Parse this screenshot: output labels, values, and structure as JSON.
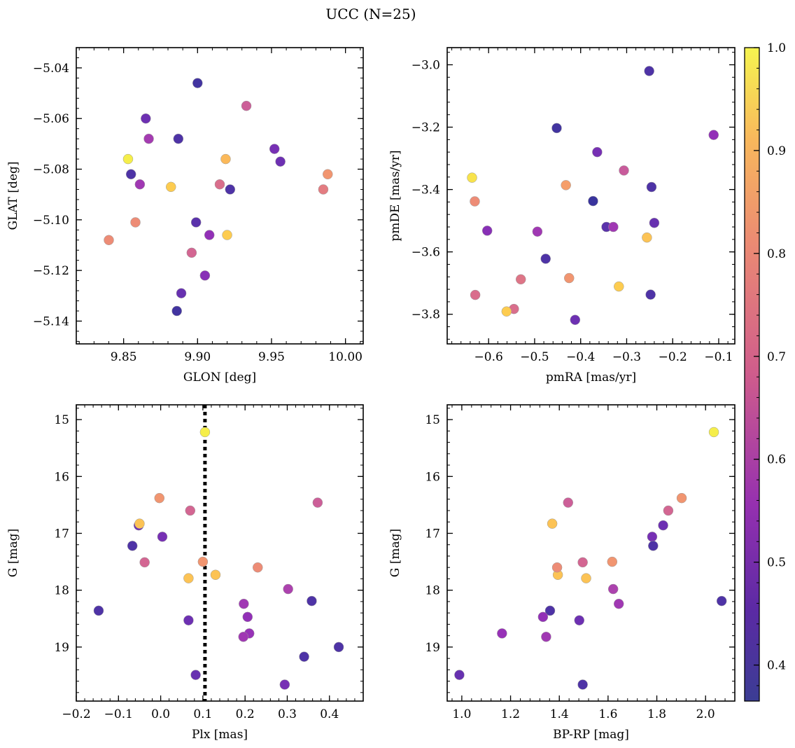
{
  "figure_title": "UCC (N=25)",
  "chart_data": [
    {
      "type": "scatter",
      "xlabel": "GLON [deg]",
      "ylabel": "GLAT [deg]",
      "xlim": [
        9.818,
        10.012
      ],
      "ylim": [
        -5.149,
        -5.032
      ],
      "y_inverted": false,
      "xticks": [
        9.85,
        9.9,
        9.95,
        10.0
      ],
      "xtick_labels": [
        "9.85",
        "9.90",
        "9.95",
        "10.00"
      ],
      "yticks": [
        -5.04,
        -5.06,
        -5.08,
        -5.1,
        -5.12,
        -5.14
      ],
      "ytick_labels": [
        "−5.04",
        "−5.06",
        "−5.08",
        "−5.10",
        "−5.12",
        "−5.14"
      ],
      "points": [
        {
          "x": 9.853,
          "y": -5.076,
          "c": 0.98
        },
        {
          "x": 9.855,
          "y": -5.082,
          "c": 0.4
        },
        {
          "x": 9.861,
          "y": -5.086,
          "c": 0.55
        },
        {
          "x": 9.865,
          "y": -5.06,
          "c": 0.45
        },
        {
          "x": 9.867,
          "y": -5.068,
          "c": 0.56
        },
        {
          "x": 9.887,
          "y": -5.068,
          "c": 0.4
        },
        {
          "x": 9.9,
          "y": -5.046,
          "c": 0.38
        },
        {
          "x": 9.882,
          "y": -5.087,
          "c": 0.92
        },
        {
          "x": 9.858,
          "y": -5.101,
          "c": 0.78
        },
        {
          "x": 9.84,
          "y": -5.108,
          "c": 0.78
        },
        {
          "x": 9.899,
          "y": -5.101,
          "c": 0.42
        },
        {
          "x": 9.908,
          "y": -5.106,
          "c": 0.52
        },
        {
          "x": 9.896,
          "y": -5.113,
          "c": 0.68
        },
        {
          "x": 9.905,
          "y": -5.122,
          "c": 0.5
        },
        {
          "x": 9.889,
          "y": -5.129,
          "c": 0.44
        },
        {
          "x": 9.886,
          "y": -5.136,
          "c": 0.38
        },
        {
          "x": 9.915,
          "y": -5.086,
          "c": 0.7
        },
        {
          "x": 9.922,
          "y": -5.088,
          "c": 0.4
        },
        {
          "x": 9.919,
          "y": -5.076,
          "c": 0.88
        },
        {
          "x": 9.92,
          "y": -5.106,
          "c": 0.92
        },
        {
          "x": 9.933,
          "y": -5.055,
          "c": 0.66
        },
        {
          "x": 9.952,
          "y": -5.072,
          "c": 0.47
        },
        {
          "x": 9.956,
          "y": -5.077,
          "c": 0.45
        },
        {
          "x": 9.985,
          "y": -5.088,
          "c": 0.74
        },
        {
          "x": 9.988,
          "y": -5.082,
          "c": 0.8
        }
      ]
    },
    {
      "type": "scatter",
      "xlabel": "pmRA [mas/yr]",
      "ylabel": "pmDE [mas/yr]",
      "xlim": [
        -0.69,
        -0.065
      ],
      "ylim": [
        -3.895,
        -2.945
      ],
      "y_inverted": false,
      "xticks": [
        -0.6,
        -0.5,
        -0.4,
        -0.3,
        -0.2,
        -0.1
      ],
      "xtick_labels": [
        "−0.6",
        "−0.5",
        "−0.4",
        "−0.3",
        "−0.2",
        "−0.1"
      ],
      "yticks": [
        -3.0,
        -3.2,
        -3.4,
        -3.6,
        -3.8
      ],
      "ytick_labels": [
        "−3.0",
        "−3.2",
        "−3.4",
        "−3.6",
        "−3.8"
      ],
      "points": [
        {
          "x": -0.251,
          "y": -3.02,
          "c": 0.4
        },
        {
          "x": -0.452,
          "y": -3.203,
          "c": 0.38
        },
        {
          "x": -0.111,
          "y": -3.225,
          "c": 0.52
        },
        {
          "x": -0.364,
          "y": -3.28,
          "c": 0.47
        },
        {
          "x": -0.306,
          "y": -3.339,
          "c": 0.65
        },
        {
          "x": -0.636,
          "y": -3.362,
          "c": 0.96
        },
        {
          "x": -0.432,
          "y": -3.386,
          "c": 0.82
        },
        {
          "x": -0.246,
          "y": -3.392,
          "c": 0.4
        },
        {
          "x": -0.63,
          "y": -3.438,
          "c": 0.78
        },
        {
          "x": -0.373,
          "y": -3.437,
          "c": 0.36
        },
        {
          "x": -0.24,
          "y": -3.507,
          "c": 0.44
        },
        {
          "x": -0.603,
          "y": -3.532,
          "c": 0.5
        },
        {
          "x": -0.494,
          "y": -3.535,
          "c": 0.55
        },
        {
          "x": -0.344,
          "y": -3.52,
          "c": 0.42
        },
        {
          "x": -0.329,
          "y": -3.52,
          "c": 0.55
        },
        {
          "x": -0.256,
          "y": -3.554,
          "c": 0.9
        },
        {
          "x": -0.476,
          "y": -3.622,
          "c": 0.4
        },
        {
          "x": -0.53,
          "y": -3.688,
          "c": 0.72
        },
        {
          "x": -0.425,
          "y": -3.684,
          "c": 0.8
        },
        {
          "x": -0.317,
          "y": -3.711,
          "c": 0.92
        },
        {
          "x": -0.629,
          "y": -3.738,
          "c": 0.7
        },
        {
          "x": -0.248,
          "y": -3.737,
          "c": 0.4
        },
        {
          "x": -0.545,
          "y": -3.783,
          "c": 0.7
        },
        {
          "x": -0.561,
          "y": -3.791,
          "c": 0.92
        },
        {
          "x": -0.412,
          "y": -3.818,
          "c": 0.45
        }
      ]
    },
    {
      "type": "scatter",
      "xlabel": "Plx [mas]",
      "ylabel": "G [mag]",
      "xlim": [
        -0.2,
        0.48
      ],
      "ylim": [
        14.74,
        19.95
      ],
      "y_inverted": true,
      "vline": {
        "x": 0.105,
        "style": "dotted",
        "color": "#000000"
      },
      "xticks": [
        -0.2,
        -0.1,
        0.0,
        0.1,
        0.2,
        0.3,
        0.4
      ],
      "xtick_labels": [
        "−0.2",
        "−0.1",
        "0.0",
        "0.1",
        "0.2",
        "0.3",
        "0.4"
      ],
      "yticks": [
        15,
        16,
        17,
        18,
        19
      ],
      "ytick_labels": [
        "15",
        "16",
        "17",
        "18",
        "19"
      ],
      "points": [
        {
          "x": 0.105,
          "y": 15.22,
          "c": 0.98
        },
        {
          "x": -0.003,
          "y": 16.38,
          "c": 0.8
        },
        {
          "x": 0.07,
          "y": 16.6,
          "c": 0.68
        },
        {
          "x": 0.372,
          "y": 16.46,
          "c": 0.66
        },
        {
          "x": -0.052,
          "y": 16.86,
          "c": 0.45
        },
        {
          "x": -0.05,
          "y": 16.83,
          "c": 0.9
        },
        {
          "x": 0.004,
          "y": 17.06,
          "c": 0.47
        },
        {
          "x": -0.067,
          "y": 17.22,
          "c": 0.4
        },
        {
          "x": -0.038,
          "y": 17.51,
          "c": 0.68
        },
        {
          "x": 0.1,
          "y": 17.5,
          "c": 0.8
        },
        {
          "x": 0.066,
          "y": 17.79,
          "c": 0.9
        },
        {
          "x": 0.13,
          "y": 17.73,
          "c": 0.9
        },
        {
          "x": 0.23,
          "y": 17.6,
          "c": 0.78
        },
        {
          "x": 0.302,
          "y": 17.98,
          "c": 0.58
        },
        {
          "x": 0.197,
          "y": 18.24,
          "c": 0.55
        },
        {
          "x": 0.358,
          "y": 18.19,
          "c": 0.4
        },
        {
          "x": -0.147,
          "y": 18.36,
          "c": 0.4
        },
        {
          "x": 0.066,
          "y": 18.53,
          "c": 0.45
        },
        {
          "x": 0.206,
          "y": 18.47,
          "c": 0.52
        },
        {
          "x": 0.21,
          "y": 18.76,
          "c": 0.53
        },
        {
          "x": 0.196,
          "y": 18.82,
          "c": 0.55
        },
        {
          "x": 0.422,
          "y": 19.0,
          "c": 0.4
        },
        {
          "x": 0.34,
          "y": 19.17,
          "c": 0.4
        },
        {
          "x": 0.083,
          "y": 19.49,
          "c": 0.44
        },
        {
          "x": 0.294,
          "y": 19.66,
          "c": 0.47
        }
      ]
    },
    {
      "type": "scatter",
      "xlabel": "BP-RP [mag]",
      "ylabel": "G [mag]",
      "xlim": [
        0.94,
        2.12
      ],
      "ylim": [
        14.74,
        19.95
      ],
      "y_inverted": true,
      "xticks": [
        1.0,
        1.2,
        1.4,
        1.6,
        1.8,
        2.0
      ],
      "xtick_labels": [
        "1.0",
        "1.2",
        "1.4",
        "1.6",
        "1.8",
        "2.0"
      ],
      "yticks": [
        15,
        16,
        17,
        18,
        19
      ],
      "ytick_labels": [
        "15",
        "16",
        "17",
        "18",
        "19"
      ],
      "points": [
        {
          "x": 2.034,
          "y": 15.22,
          "c": 0.98
        },
        {
          "x": 1.902,
          "y": 16.38,
          "c": 0.8
        },
        {
          "x": 1.847,
          "y": 16.6,
          "c": 0.68
        },
        {
          "x": 1.436,
          "y": 16.46,
          "c": 0.66
        },
        {
          "x": 1.826,
          "y": 16.86,
          "c": 0.45
        },
        {
          "x": 1.371,
          "y": 16.83,
          "c": 0.9
        },
        {
          "x": 1.781,
          "y": 17.06,
          "c": 0.47
        },
        {
          "x": 1.785,
          "y": 17.22,
          "c": 0.4
        },
        {
          "x": 1.496,
          "y": 17.51,
          "c": 0.68
        },
        {
          "x": 1.617,
          "y": 17.5,
          "c": 0.8
        },
        {
          "x": 1.51,
          "y": 17.79,
          "c": 0.9
        },
        {
          "x": 1.394,
          "y": 17.73,
          "c": 0.9
        },
        {
          "x": 1.391,
          "y": 17.6,
          "c": 0.78
        },
        {
          "x": 1.621,
          "y": 17.98,
          "c": 0.58
        },
        {
          "x": 1.644,
          "y": 18.24,
          "c": 0.55
        },
        {
          "x": 2.066,
          "y": 18.19,
          "c": 0.4
        },
        {
          "x": 1.362,
          "y": 18.36,
          "c": 0.4
        },
        {
          "x": 1.482,
          "y": 18.53,
          "c": 0.45
        },
        {
          "x": 1.333,
          "y": 18.47,
          "c": 0.52
        },
        {
          "x": 1.165,
          "y": 18.76,
          "c": 0.53
        },
        {
          "x": 1.346,
          "y": 18.82,
          "c": 0.55
        },
        {
          "x": 0.99,
          "y": 19.49,
          "c": 0.44
        },
        {
          "x": 1.496,
          "y": 19.66,
          "c": 0.4
        }
      ]
    }
  ],
  "colorbar": {
    "colormap": "plasma",
    "range": [
      0.365,
      1.0
    ],
    "ticks": [
      0.4,
      0.5,
      0.6,
      0.7,
      0.8,
      0.9,
      1.0
    ],
    "tick_labels": [
      "0.4",
      "0.5",
      "0.6",
      "0.7",
      "0.8",
      "0.9",
      "1.0"
    ]
  }
}
